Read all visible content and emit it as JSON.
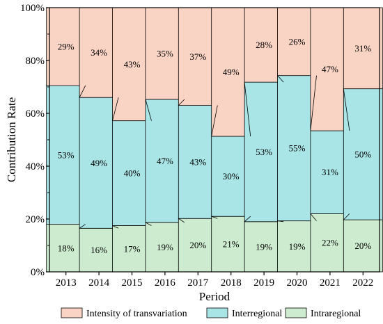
{
  "chart_data": {
    "type": "bar",
    "stacked": true,
    "normalized_percent": true,
    "categories": [
      "2013",
      "2014",
      "2015",
      "2016",
      "2017",
      "2018",
      "2019",
      "2020",
      "2021",
      "2022"
    ],
    "series": [
      {
        "name": "Intraregional",
        "color": "#cdeccf",
        "values": [
          18,
          16.5,
          17.5,
          18.7,
          20.2,
          21,
          19,
          19.3,
          22,
          19.7
        ],
        "labels": [
          "18%",
          "16%",
          "17%",
          "19%",
          "20%",
          "21%",
          "19%",
          "19%",
          "22%",
          "20%"
        ]
      },
      {
        "name": "Interregional",
        "color": "#a9e4e6",
        "values": [
          52.5,
          49.5,
          39.7,
          46.6,
          42.8,
          30.3,
          52.8,
          55,
          31.4,
          49.6
        ],
        "labels": [
          "53%",
          "49%",
          "40%",
          "47%",
          "43%",
          "30%",
          "53%",
          "55%",
          "31%",
          "50%"
        ]
      },
      {
        "name": "Intensity of transvariation",
        "color": "#f9d3c3",
        "values": [
          29.5,
          34,
          42.8,
          34.7,
          37,
          48.7,
          28.2,
          25.7,
          46.6,
          30.7
        ],
        "labels": [
          "29%",
          "34%",
          "43%",
          "35%",
          "37%",
          "49%",
          "28%",
          "26%",
          "47%",
          "31%"
        ]
      }
    ],
    "xlabel": "Period",
    "ylabel": "Contribution Rate",
    "ylim": [
      0,
      100
    ],
    "yticks": [
      "0%",
      "20%",
      "40%",
      "60%",
      "80%",
      "100%"
    ],
    "connector_lines": true,
    "legend": {
      "position": "bottom",
      "order": [
        "Intensity of transvariation",
        "Interregional",
        "Intraregional"
      ]
    },
    "grid": false
  }
}
